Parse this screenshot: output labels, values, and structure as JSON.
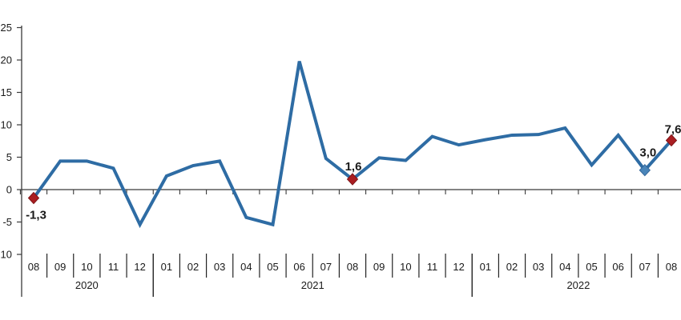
{
  "chart_data": {
    "type": "line",
    "title": "",
    "x_groups": [
      {
        "year": "2020",
        "months": [
          "08",
          "09",
          "10",
          "11",
          "12"
        ]
      },
      {
        "year": "2021",
        "months": [
          "01",
          "02",
          "03",
          "04",
          "05",
          "06",
          "07",
          "08",
          "09",
          "10",
          "11",
          "12"
        ]
      },
      {
        "year": "2022",
        "months": [
          "01",
          "02",
          "03",
          "04",
          "05",
          "06",
          "07",
          "08"
        ]
      }
    ],
    "values": [
      -1.3,
      4.4,
      4.4,
      3.3,
      -5.4,
      2.1,
      3.7,
      4.4,
      -4.3,
      -5.4,
      19.8,
      4.8,
      1.6,
      4.9,
      4.5,
      8.2,
      6.9,
      7.7,
      8.4,
      8.5,
      9.5,
      3.8,
      8.4,
      3.0,
      7.6
    ],
    "y_axis": {
      "ticks": [
        25,
        20,
        15,
        10,
        5,
        0,
        -5,
        -10
      ],
      "min": -10,
      "max": 25
    },
    "highlighted_points": [
      {
        "index": 0,
        "label": "-1,3",
        "marker": "red-diamond",
        "offset": [
          3,
          26
        ]
      },
      {
        "index": 12,
        "label": "1,6",
        "marker": "red-diamond",
        "offset": [
          1,
          -11
        ]
      },
      {
        "index": 23,
        "label": "3,0",
        "marker": "blue-diamond",
        "offset": [
          4,
          -17
        ]
      },
      {
        "index": 24,
        "label": "7,6",
        "marker": "red-diamond",
        "offset": [
          2,
          -9
        ]
      }
    ],
    "colors": {
      "line": "#2e6ca4",
      "marker_red": "#aa1e22",
      "marker_red_edge": "#7d1316",
      "marker_blue": "#4a85b9",
      "marker_blue_edge": "#35679a",
      "axis": "#3a3a3a",
      "text": "#1a1a1a"
    },
    "grid": false,
    "legend": false
  }
}
